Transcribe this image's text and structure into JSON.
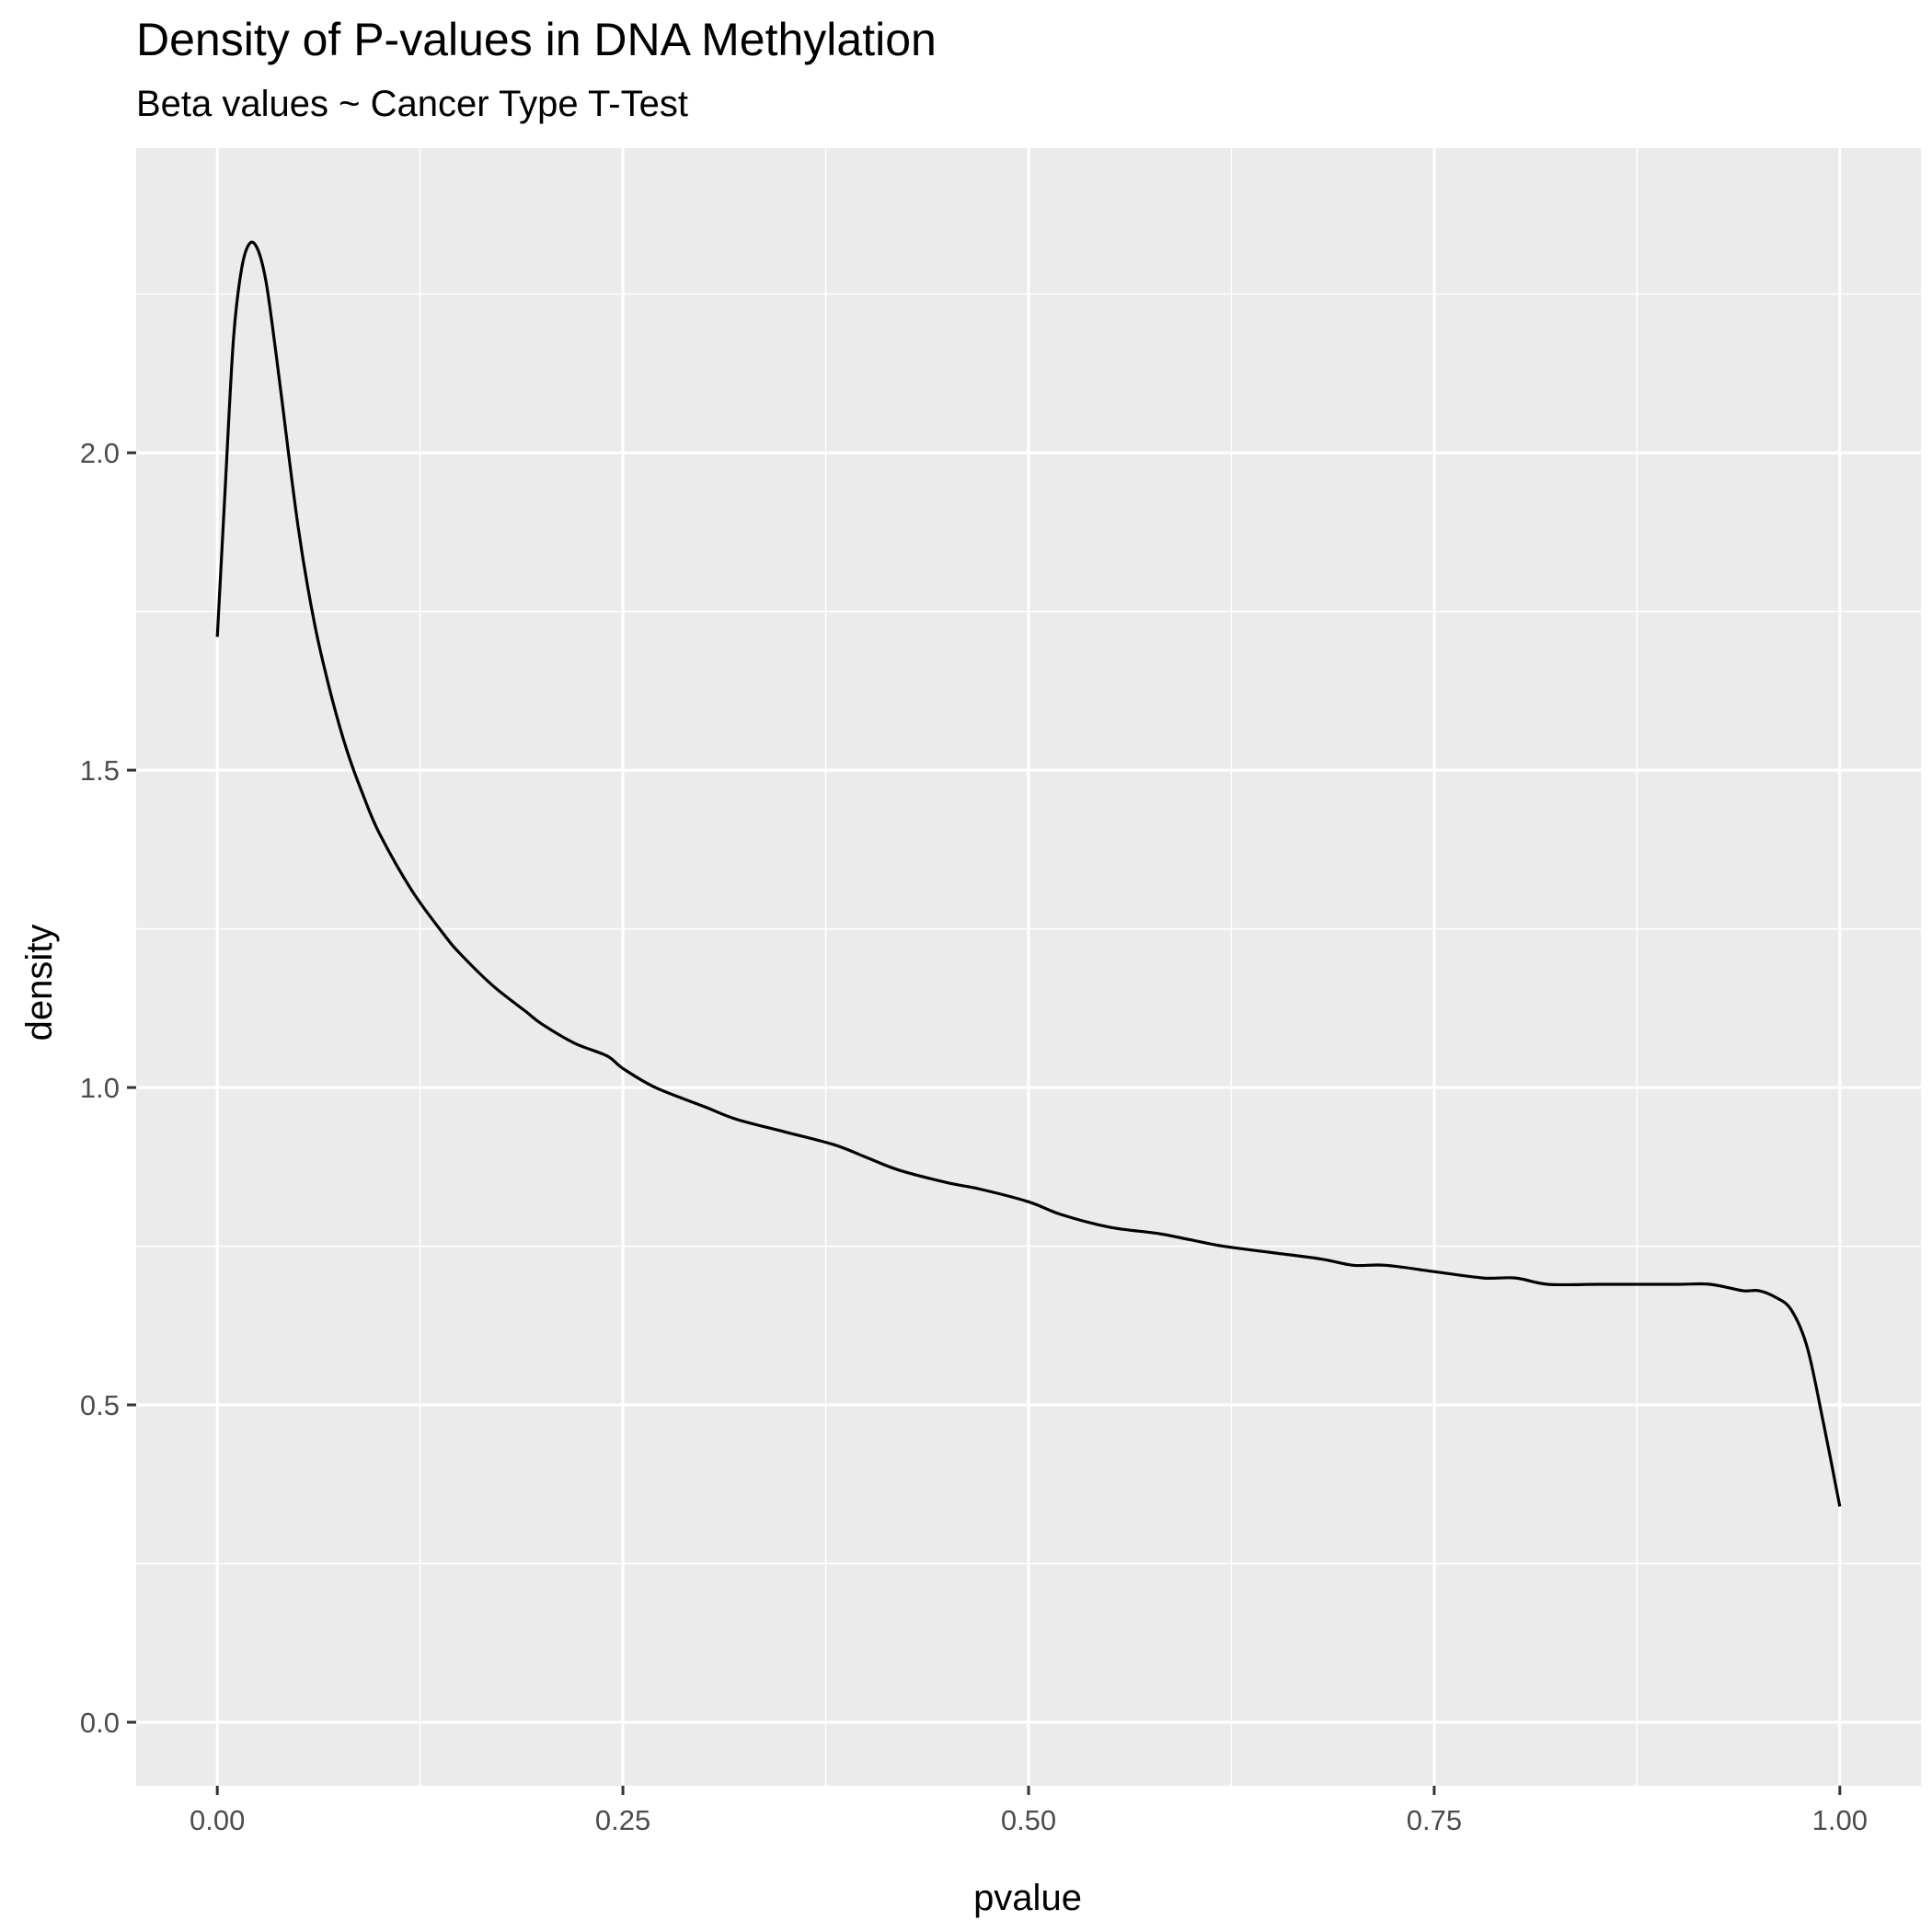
{
  "chart_data": {
    "type": "line",
    "title": "Density of P-values in DNA Methylation",
    "subtitle": "Beta values ~ Cancer Type T-Test",
    "xlabel": "pvalue",
    "ylabel": "density",
    "xlim": [
      -0.05,
      1.05
    ],
    "ylim": [
      -0.1,
      2.48
    ],
    "x_ticks": [
      0.0,
      0.25,
      0.5,
      0.75,
      1.0
    ],
    "x_tick_labels": [
      "0.00",
      "0.25",
      "0.50",
      "0.75",
      "1.00"
    ],
    "y_ticks": [
      0.0,
      0.5,
      1.0,
      1.5,
      2.0
    ],
    "y_tick_labels": [
      "0.0",
      "0.5",
      "1.0",
      "1.5",
      "2.0"
    ],
    "grid": true,
    "series": [
      {
        "x": [
          0.0,
          0.005,
          0.01,
          0.015,
          0.02,
          0.025,
          0.03,
          0.035,
          0.04,
          0.05,
          0.06,
          0.07,
          0.08,
          0.09,
          0.1,
          0.12,
          0.14,
          0.15,
          0.17,
          0.19,
          0.2,
          0.22,
          0.24,
          0.25,
          0.27,
          0.3,
          0.32,
          0.35,
          0.38,
          0.4,
          0.42,
          0.45,
          0.47,
          0.5,
          0.52,
          0.55,
          0.58,
          0.6,
          0.62,
          0.65,
          0.68,
          0.7,
          0.72,
          0.75,
          0.78,
          0.8,
          0.82,
          0.85,
          0.87,
          0.9,
          0.92,
          0.94,
          0.95,
          0.96,
          0.97,
          0.98,
          0.99,
          1.0
        ],
        "y": [
          1.71,
          1.95,
          2.18,
          2.29,
          2.33,
          2.32,
          2.27,
          2.18,
          2.08,
          1.88,
          1.73,
          1.62,
          1.53,
          1.46,
          1.4,
          1.31,
          1.24,
          1.21,
          1.16,
          1.12,
          1.1,
          1.07,
          1.05,
          1.03,
          1.0,
          0.97,
          0.95,
          0.93,
          0.91,
          0.89,
          0.87,
          0.85,
          0.84,
          0.82,
          0.8,
          0.78,
          0.77,
          0.76,
          0.75,
          0.74,
          0.73,
          0.72,
          0.72,
          0.71,
          0.7,
          0.7,
          0.69,
          0.69,
          0.69,
          0.69,
          0.69,
          0.68,
          0.68,
          0.67,
          0.65,
          0.59,
          0.47,
          0.34
        ]
      }
    ],
    "colors": {
      "panel": "#ebebeb",
      "grid": "#ffffff",
      "line": "#000000",
      "tick": "#333333"
    }
  }
}
